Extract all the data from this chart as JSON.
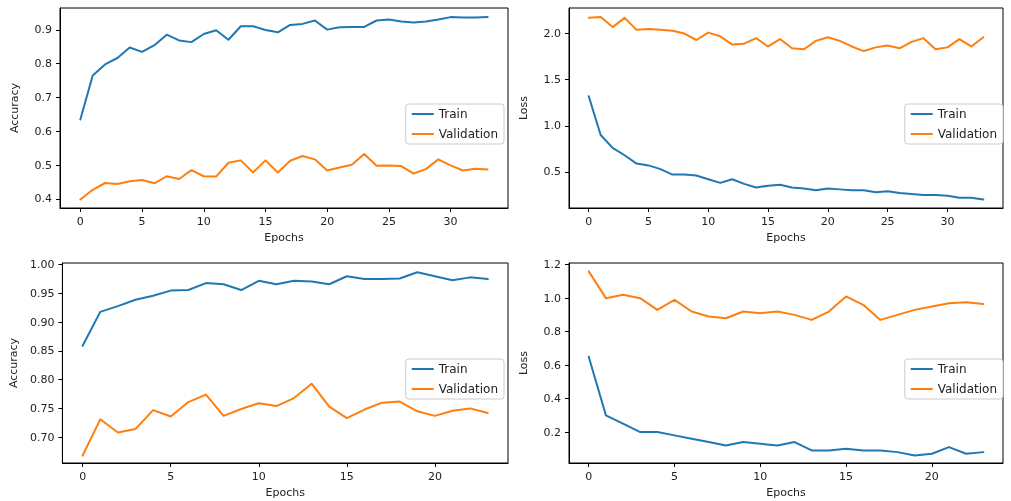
{
  "chart_data": [
    {
      "type": "line",
      "xlabel": "Epochs",
      "ylabel": "Accuracy",
      "x": [
        0,
        1,
        2,
        3,
        4,
        5,
        6,
        7,
        8,
        9,
        10,
        11,
        12,
        13,
        14,
        15,
        16,
        17,
        18,
        19,
        20,
        21,
        22,
        23,
        24,
        25,
        26,
        27,
        28,
        29,
        30,
        31,
        32,
        33
      ],
      "xlim": [
        -1.65,
        34.65
      ],
      "xticks": [
        0,
        5,
        10,
        15,
        20,
        25,
        30
      ],
      "ylim": [
        0.373,
        0.965
      ],
      "yticks": [
        0.4,
        0.5,
        0.6,
        0.7,
        0.8,
        0.9
      ],
      "grid": false,
      "legend": "right",
      "series": [
        {
          "name": "Train",
          "color": "#1f77b4",
          "values": [
            0.635,
            0.765,
            0.798,
            0.817,
            0.848,
            0.835,
            0.855,
            0.886,
            0.869,
            0.864,
            0.888,
            0.899,
            0.871,
            0.911,
            0.911,
            0.9,
            0.893,
            0.915,
            0.918,
            0.928,
            0.901,
            0.908,
            0.909,
            0.909,
            0.928,
            0.931,
            0.925,
            0.922,
            0.925,
            0.931,
            0.938,
            0.937,
            0.937,
            0.938
          ]
        },
        {
          "name": "Validation",
          "color": "#ff7f0e",
          "values": [
            0.398,
            0.427,
            0.447,
            0.444,
            0.452,
            0.456,
            0.446,
            0.467,
            0.459,
            0.485,
            0.467,
            0.466,
            0.507,
            0.514,
            0.478,
            0.514,
            0.478,
            0.513,
            0.527,
            0.517,
            0.484,
            0.493,
            0.501,
            0.533,
            0.498,
            0.499,
            0.497,
            0.475,
            0.488,
            0.517,
            0.499,
            0.484,
            0.489,
            0.487
          ]
        }
      ]
    },
    {
      "type": "line",
      "xlabel": "Epochs",
      "ylabel": "Loss",
      "x": [
        0,
        1,
        2,
        3,
        4,
        5,
        6,
        7,
        8,
        9,
        10,
        11,
        12,
        13,
        14,
        15,
        16,
        17,
        18,
        19,
        20,
        21,
        22,
        23,
        24,
        25,
        26,
        27,
        28,
        29,
        30,
        31,
        32,
        33
      ],
      "xlim": [
        -1.65,
        34.65
      ],
      "xticks": [
        0,
        5,
        10,
        15,
        20,
        25,
        30
      ],
      "ylim": [
        0.108,
        2.277
      ],
      "yticks": [
        0.5,
        {
          "value": 1,
          "label": "1.0"
        },
        1.5,
        {
          "value": 2,
          "label": "2.0"
        }
      ],
      "grid": false,
      "legend": "right",
      "series": [
        {
          "name": "Train",
          "color": "#1f77b4",
          "values": [
            1.32,
            0.9,
            0.76,
            0.68,
            0.59,
            0.57,
            0.53,
            0.47,
            0.47,
            0.46,
            0.42,
            0.38,
            0.42,
            0.37,
            0.33,
            0.35,
            0.36,
            0.33,
            0.32,
            0.3,
            0.32,
            0.31,
            0.3,
            0.3,
            0.28,
            0.29,
            0.27,
            0.26,
            0.25,
            0.25,
            0.24,
            0.22,
            0.22,
            0.2
          ]
        },
        {
          "name": "Validation",
          "color": "#ff7f0e",
          "values": [
            2.17,
            2.18,
            2.07,
            2.17,
            2.04,
            2.05,
            2.04,
            2.03,
            2.0,
            1.93,
            2.01,
            1.97,
            1.88,
            1.89,
            1.95,
            1.86,
            1.94,
            1.84,
            1.83,
            1.92,
            1.96,
            1.92,
            1.86,
            1.81,
            1.85,
            1.87,
            1.84,
            1.91,
            1.95,
            1.83,
            1.85,
            1.94,
            1.86,
            1.96
          ]
        }
      ]
    },
    {
      "type": "line",
      "xlabel": "Epochs",
      "ylabel": "Accuracy",
      "x": [
        0,
        1,
        2,
        3,
        4,
        5,
        6,
        7,
        8,
        9,
        10,
        11,
        12,
        13,
        14,
        15,
        16,
        17,
        18,
        19,
        20,
        21,
        22,
        23
      ],
      "xlim": [
        -1.15,
        24.15
      ],
      "xticks": [
        0,
        5,
        10,
        15,
        20
      ],
      "ylim": [
        0.655,
        1.003
      ],
      "yticks": [
        {
          "value": 0.7,
          "label": "0.70"
        },
        0.75,
        {
          "value": 0.8,
          "label": "0.80"
        },
        0.85,
        {
          "value": 0.9,
          "label": "0.90"
        },
        0.95,
        {
          "value": 1,
          "label": "1.00"
        }
      ],
      "grid": false,
      "legend": "right",
      "series": [
        {
          "name": "Train",
          "color": "#1f77b4",
          "values": [
            0.859,
            0.918,
            0.928,
            0.939,
            0.946,
            0.955,
            0.956,
            0.968,
            0.966,
            0.956,
            0.972,
            0.966,
            0.972,
            0.971,
            0.966,
            0.98,
            0.975,
            0.975,
            0.976,
            0.987,
            0.98,
            0.973,
            0.978,
            0.975
          ]
        },
        {
          "name": "Validation",
          "color": "#ff7f0e",
          "values": [
            0.668,
            0.731,
            0.708,
            0.714,
            0.747,
            0.736,
            0.761,
            0.774,
            0.737,
            0.749,
            0.759,
            0.754,
            0.768,
            0.793,
            0.753,
            0.733,
            0.748,
            0.76,
            0.762,
            0.745,
            0.737,
            0.746,
            0.75,
            0.742
          ]
        }
      ]
    },
    {
      "type": "line",
      "xlabel": "Epochs",
      "ylabel": "Loss",
      "x": [
        0,
        1,
        2,
        3,
        4,
        5,
        6,
        7,
        8,
        9,
        10,
        11,
        12,
        13,
        14,
        15,
        16,
        17,
        18,
        19,
        20,
        21,
        22,
        23
      ],
      "xlim": [
        -1.15,
        24.15
      ],
      "xticks": [
        0,
        5,
        10,
        15,
        20
      ],
      "ylim": [
        0.015,
        1.21
      ],
      "yticks": [
        0.2,
        0.4,
        0.6,
        0.8,
        {
          "value": 1,
          "label": "1.0"
        },
        1.2
      ],
      "grid": false,
      "legend": "right",
      "series": [
        {
          "name": "Train",
          "color": "#1f77b4",
          "values": [
            0.65,
            0.3,
            0.25,
            0.2,
            0.2,
            0.18,
            0.16,
            0.14,
            0.12,
            0.14,
            0.13,
            0.12,
            0.14,
            0.09,
            0.09,
            0.1,
            0.09,
            0.09,
            0.08,
            0.06,
            0.07,
            0.11,
            0.07,
            0.08
          ]
        },
        {
          "name": "Validation",
          "color": "#ff7f0e",
          "values": [
            1.16,
            1.0,
            1.02,
            1.0,
            0.93,
            0.99,
            0.92,
            0.89,
            0.88,
            0.92,
            0.91,
            0.92,
            0.9,
            0.87,
            0.92,
            1.01,
            0.96,
            0.87,
            0.9,
            0.93,
            0.95,
            0.97,
            0.975,
            0.965
          ]
        }
      ]
    }
  ]
}
